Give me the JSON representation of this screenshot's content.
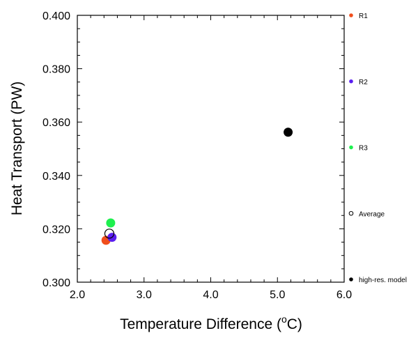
{
  "chart_data": {
    "type": "scatter",
    "xlabel": "Temperature Difference (",
    "xlabel_unit": "o",
    "xlabel_unit_suffix": "C)",
    "ylabel": "Heat Transport (PW)",
    "xlim": [
      2.0,
      6.0
    ],
    "ylim": [
      0.3,
      0.4
    ],
    "x_ticks": [
      2.0,
      3.0,
      4.0,
      5.0,
      6.0
    ],
    "x_tick_labels": [
      "2.0",
      "3.0",
      "4.0",
      "5.0",
      "6.0"
    ],
    "y_ticks": [
      0.3,
      0.32,
      0.34,
      0.36,
      0.38,
      0.4
    ],
    "y_tick_labels": [
      "0.300",
      "0.320",
      "0.340",
      "0.360",
      "0.380",
      "0.400"
    ],
    "grid": false,
    "legend_placement": "right, outside plot",
    "series": [
      {
        "name": "R1",
        "color": "#f04e1c",
        "filled": true,
        "x": 2.43,
        "y": 0.3157
      },
      {
        "name": "R2",
        "color": "#5a1ef0",
        "filled": true,
        "x": 2.52,
        "y": 0.3168
      },
      {
        "name": "R3",
        "color": "#1ef04e",
        "filled": true,
        "x": 2.5,
        "y": 0.3222
      },
      {
        "name": "Average",
        "color": "#000000",
        "filled": false,
        "x": 2.48,
        "y": 0.3182
      },
      {
        "name": "high-res. model",
        "color": "#000000",
        "filled": true,
        "x": 5.16,
        "y": 0.3562
      }
    ]
  }
}
